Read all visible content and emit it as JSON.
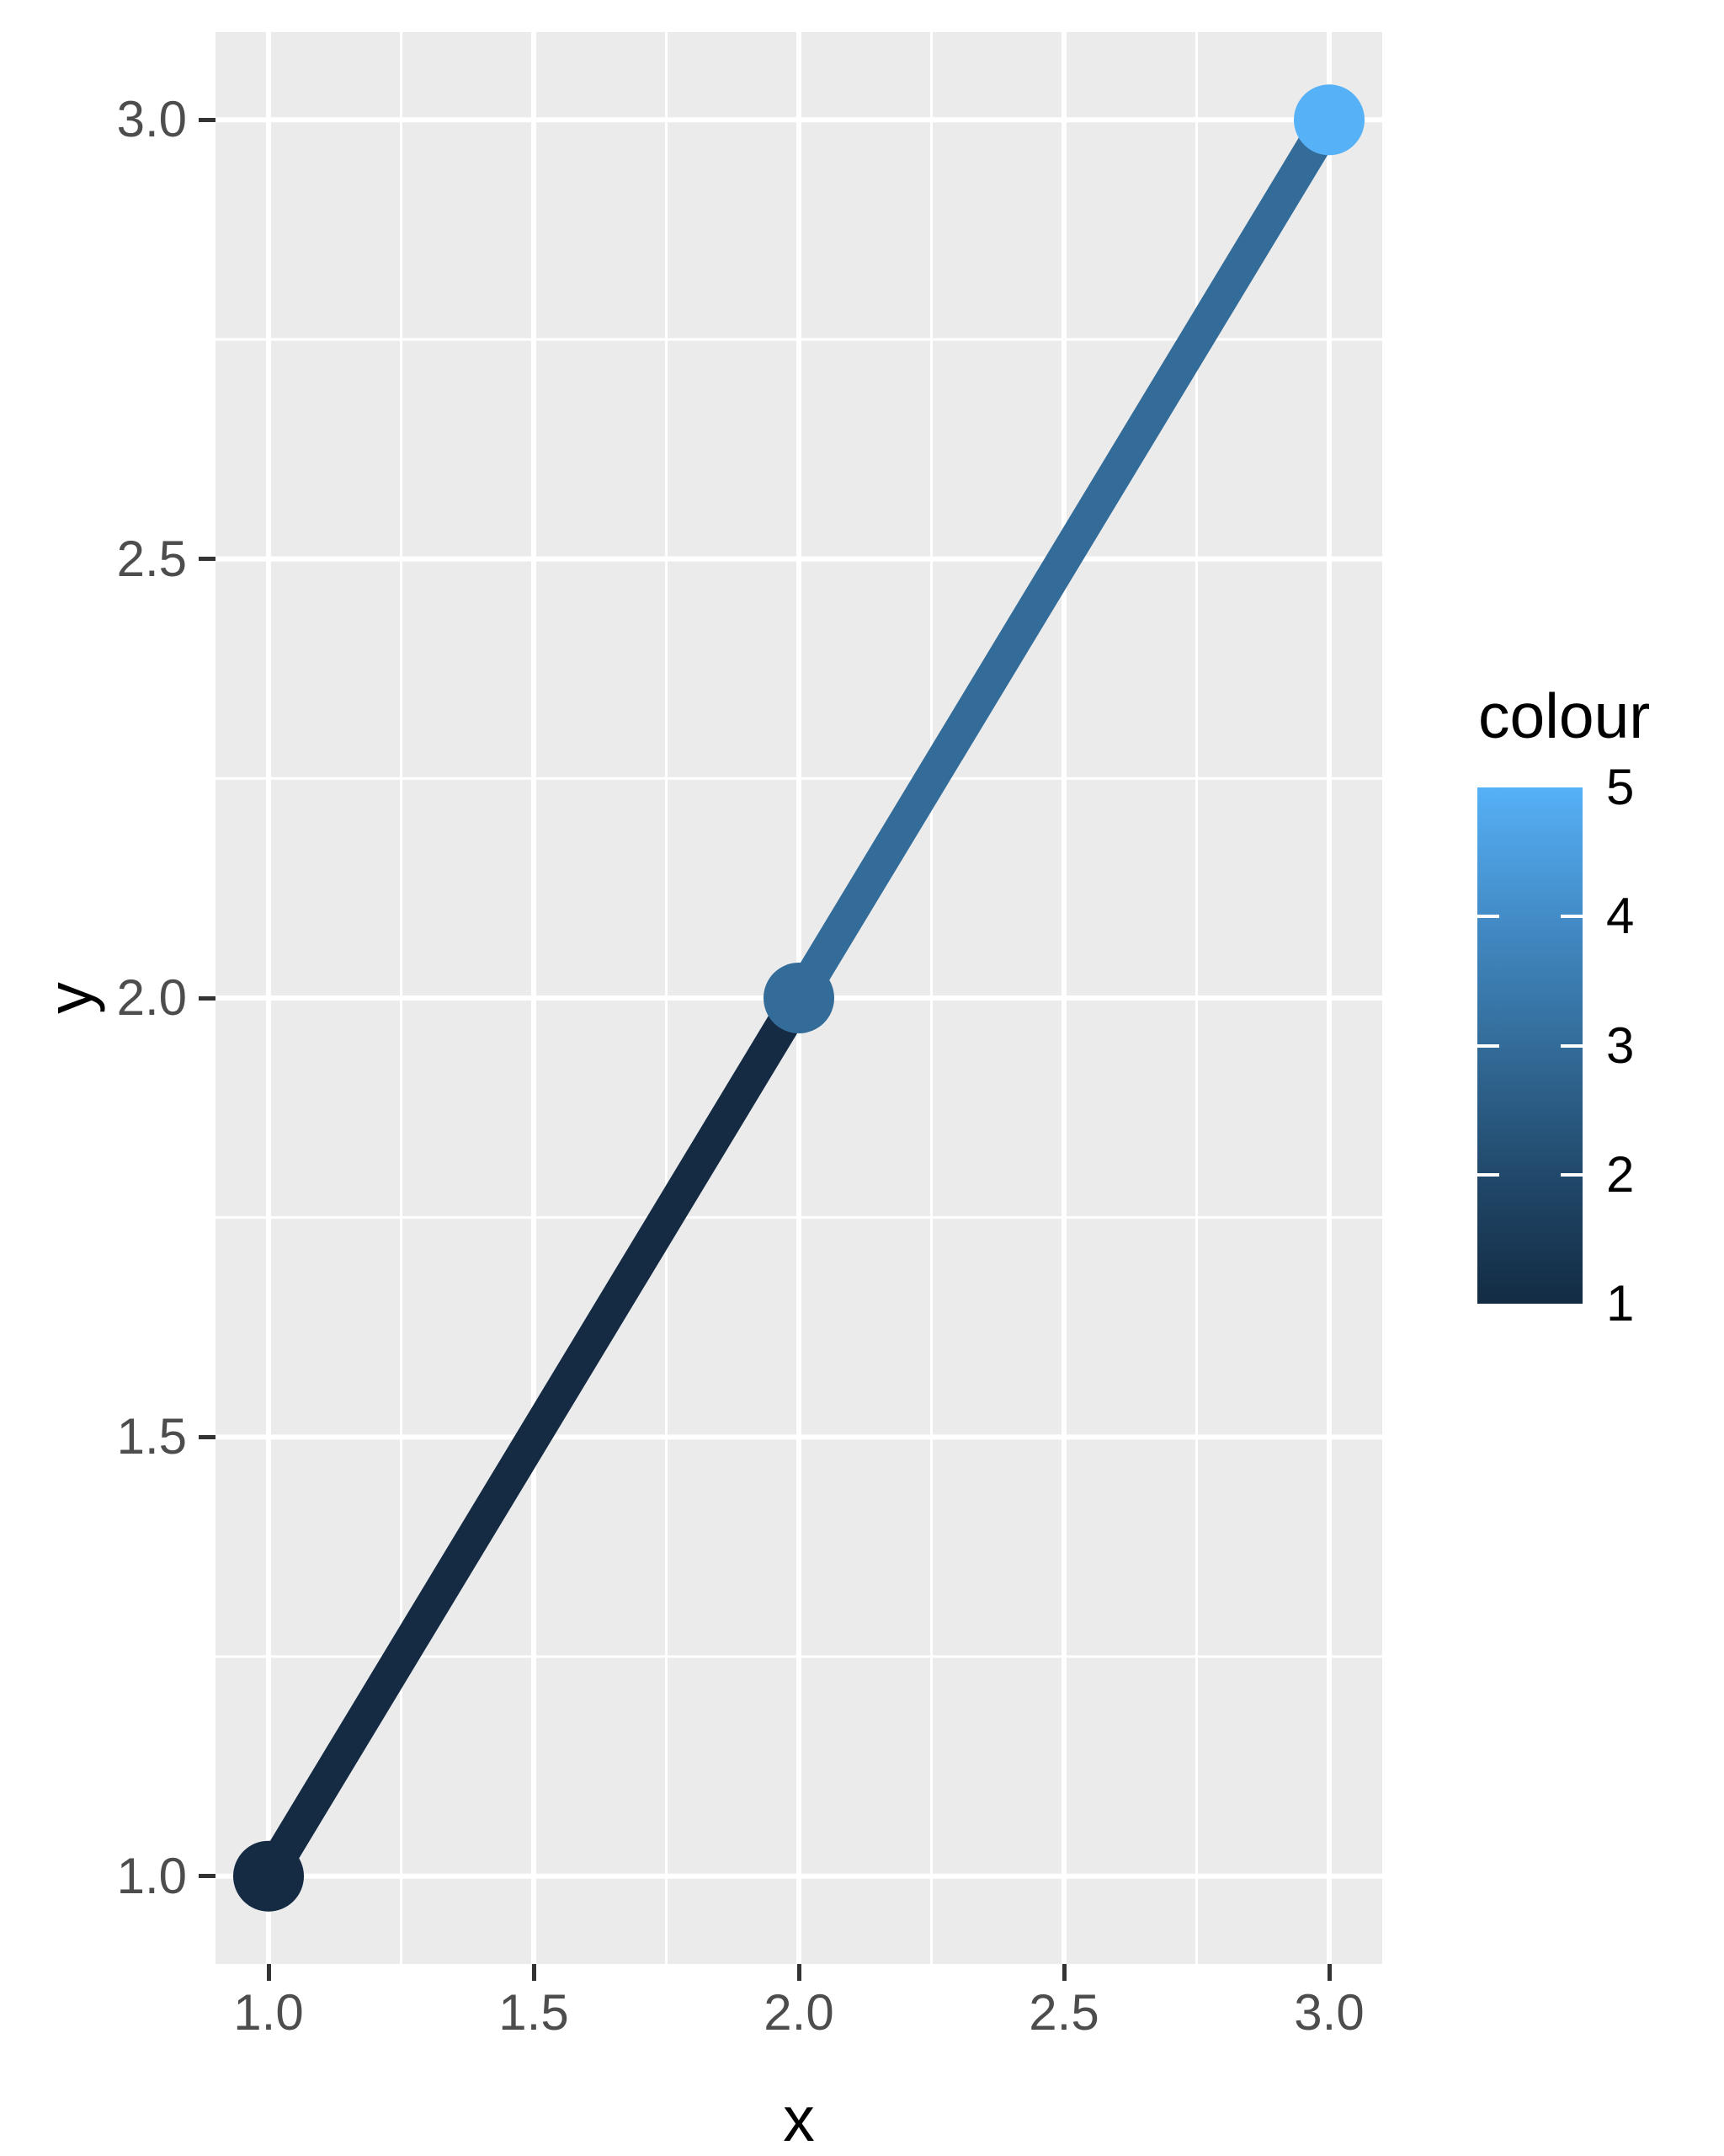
{
  "style": {
    "background": "#FFFFFF",
    "panel_background": "#EBEBEB",
    "grid_color": "#FFFFFF",
    "axis_tick_color": "#333333",
    "axis_text_color": "#4D4D4D",
    "title_color": "#000000"
  },
  "chart_data": {
    "type": "line",
    "title": "",
    "xlabel": "x",
    "ylabel": "y",
    "x": [
      1,
      2,
      3
    ],
    "y": [
      1,
      2,
      3
    ],
    "colour": [
      1,
      3,
      5
    ],
    "point_colors": [
      "#142B43",
      "#336C99",
      "#56B1F7"
    ],
    "segment_colors": [
      "#142B43",
      "#336C99"
    ],
    "point_radius": 42,
    "line_width": 40,
    "xlim": [
      0.9,
      3.1
    ],
    "ylim": [
      0.9,
      3.1
    ],
    "x_major_ticks": [
      1.0,
      1.5,
      2.0,
      2.5,
      3.0
    ],
    "x_tick_labels": [
      "1.0",
      "1.5",
      "2.0",
      "2.5",
      "3.0"
    ],
    "x_minor_ticks": [
      1.25,
      1.75,
      2.25,
      2.75
    ],
    "y_major_ticks": [
      1.0,
      1.5,
      2.0,
      2.5,
      3.0
    ],
    "y_tick_labels": [
      "1.0",
      "1.5",
      "2.0",
      "2.5",
      "3.0"
    ],
    "y_minor_ticks": [
      1.25,
      1.75,
      2.25,
      2.75
    ],
    "grid": true,
    "legend_position": "right"
  },
  "legend": {
    "title": "colour",
    "breaks": [
      5,
      4,
      3,
      2,
      1
    ],
    "break_labels": [
      "5",
      "4",
      "3",
      "2",
      "1"
    ],
    "inner_tick_breaks": [
      4,
      3,
      2
    ],
    "range": [
      1,
      5
    ],
    "gradient_low": "#132B43",
    "gradient_high": "#56B1F7",
    "gradient_stops": [
      "#132B43",
      "#21496B",
      "#336C99",
      "#438CC7",
      "#56B1F7"
    ]
  }
}
